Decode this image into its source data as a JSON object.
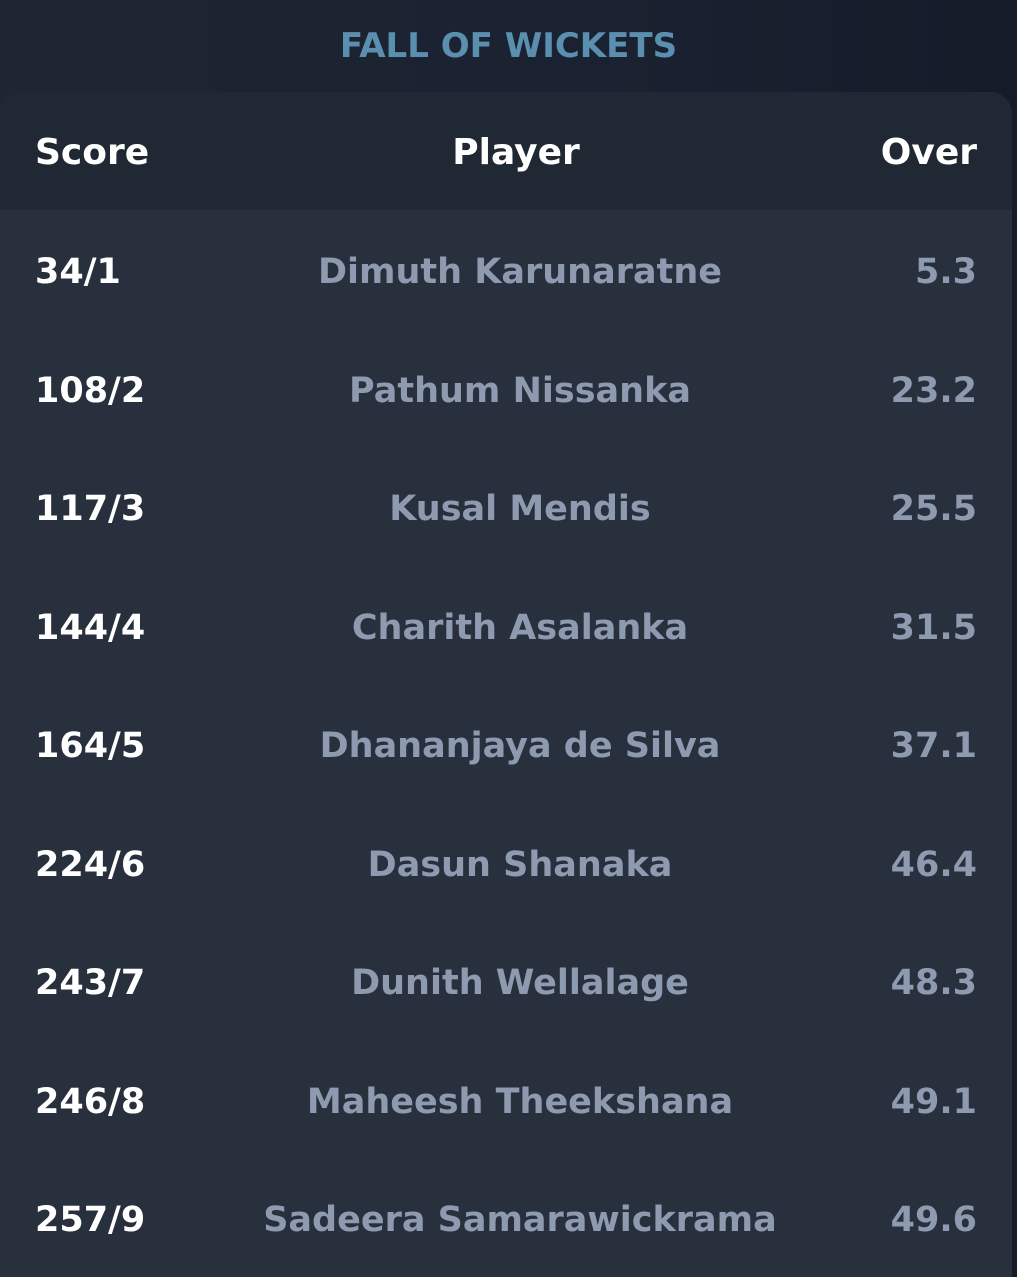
{
  "title": "FALL OF WICKETS",
  "headers": {
    "score": "Score",
    "player": "Player",
    "over": "Over"
  },
  "wickets": [
    {
      "score": "34/1",
      "player": "Dimuth Karunaratne",
      "over": "5.3"
    },
    {
      "score": "108/2",
      "player": "Pathum Nissanka",
      "over": "23.2"
    },
    {
      "score": "117/3",
      "player": "Kusal Mendis",
      "over": "25.5"
    },
    {
      "score": "144/4",
      "player": "Charith Asalanka",
      "over": "31.5"
    },
    {
      "score": "164/5",
      "player": "Dhananjaya de Silva",
      "over": "37.1"
    },
    {
      "score": "224/6",
      "player": "Dasun Shanaka",
      "over": "46.4"
    },
    {
      "score": "243/7",
      "player": "Dunith Wellalage",
      "over": "48.3"
    },
    {
      "score": "246/8",
      "player": "Maheesh Theekshana",
      "over": "49.1"
    },
    {
      "score": "257/9",
      "player": "Sadeera Samarawickrama",
      "over": "49.6"
    }
  ],
  "colors": {
    "title": "#5b8fb0",
    "card_background": "#28303d",
    "header_background": "#202833",
    "score_text": "#ffffff",
    "muted_text": "#8d9ab0"
  }
}
